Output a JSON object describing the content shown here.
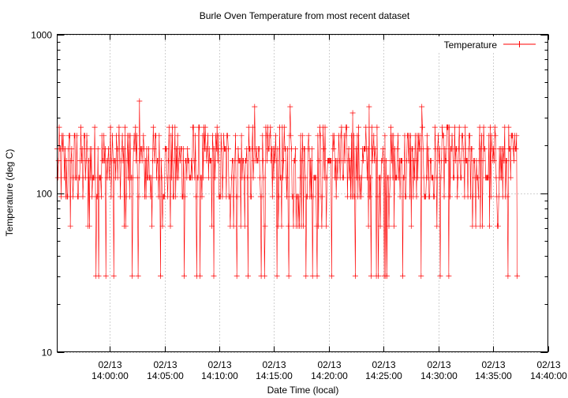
{
  "chart_data": {
    "type": "line",
    "title": "Burle Oven Temperature from most recent dataset",
    "xlabel": "Date Time (local)",
    "ylabel": "Temperature (deg C)",
    "yscale": "log",
    "ylim": [
      10,
      1000
    ],
    "y_ticks": [
      {
        "value": 10,
        "label": "10"
      },
      {
        "value": 100,
        "label": "100"
      },
      {
        "value": 1000,
        "label": "1000"
      }
    ],
    "xlim_minutes": [
      -4.8,
      40
    ],
    "x_ticks": [
      {
        "minutes": 0,
        "date": "02/13",
        "time": "14:00:00"
      },
      {
        "minutes": 5,
        "date": "02/13",
        "time": "14:05:00"
      },
      {
        "minutes": 10,
        "date": "02/13",
        "time": "14:10:00"
      },
      {
        "minutes": 15,
        "date": "02/13",
        "time": "14:15:00"
      },
      {
        "minutes": 20,
        "date": "02/13",
        "time": "14:20:00"
      },
      {
        "minutes": 25,
        "date": "02/13",
        "time": "14:25:00"
      },
      {
        "minutes": 30,
        "date": "02/13",
        "time": "14:30:00"
      },
      {
        "minutes": 35,
        "date": "02/13",
        "time": "14:35:00"
      },
      {
        "minutes": 40,
        "date": "02/13",
        "time": "14:40:00"
      }
    ],
    "grid": true,
    "legend": {
      "position": "top-right"
    },
    "series": [
      {
        "name": "Temperature",
        "color": "#ff0000",
        "marker": "plus",
        "x_start_minutes": -4.8,
        "x_end_minutes": 37.2,
        "level_values": [
          30,
          62,
          95,
          125,
          160,
          190,
          230,
          260
        ],
        "peak_values": [
          {
            "minutes": 2.7,
            "value": 380
          },
          {
            "minutes": 13.2,
            "value": 350
          },
          {
            "minutes": 16.5,
            "value": 350
          },
          {
            "minutes": 23.7,
            "value": 350
          },
          {
            "minutes": 28.5,
            "value": 350
          },
          {
            "minutes": 22.2,
            "value": 320
          }
        ],
        "sample_count": 700
      }
    ]
  }
}
